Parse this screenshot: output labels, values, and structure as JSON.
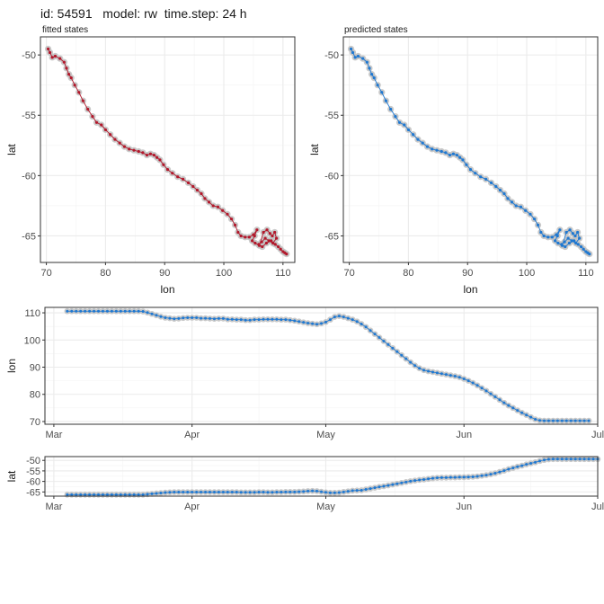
{
  "title": "id: 54591   model: rw  time.step: 24 h",
  "colors": {
    "fitted": "#b2182b",
    "predicted": "#1f78d1",
    "obs": "#bfbfbf",
    "grid": "#ebebeb",
    "panel_border": "#333333"
  },
  "chart_data": [
    {
      "type": "scatter",
      "subtitle": "fitted states",
      "xlabel": "lon",
      "ylabel": "lat",
      "xlim": [
        69,
        112
      ],
      "ylim": [
        -67.2,
        -48.5
      ],
      "xticks": [
        70,
        80,
        90,
        100,
        110
      ],
      "yticks": [
        -50,
        -55,
        -60,
        -65
      ],
      "series": [
        {
          "style": "fitted",
          "x": [
            70.3,
            70.6,
            71,
            71.5,
            72.3,
            73,
            73.4,
            73.8,
            74.2,
            74.8,
            75.5,
            76.2,
            77,
            77.8,
            78.5,
            79.3,
            80,
            80.8,
            81.6,
            82.4,
            83.2,
            84,
            84.8,
            85.6,
            86.3,
            87,
            87.6,
            88.2,
            88.7,
            89.2,
            89.8,
            90.5,
            91.3,
            92.2,
            93.1,
            94,
            94.8,
            95.5,
            96.2,
            96.8,
            97.5,
            98.2,
            99,
            99.8,
            100.6,
            101.3,
            101.9,
            102.4,
            102.9,
            103.6,
            104.3,
            105,
            105.6,
            105.2,
            104.8,
            105.3,
            106,
            106.7,
            107.3,
            107.8,
            108.2,
            108.6,
            108.9,
            108.3,
            107.6,
            107,
            106.4,
            105.9,
            106.5,
            107.2,
            108,
            108.7,
            109.2,
            109.6,
            110,
            110.3,
            110.6
          ],
          "y": [
            -49.5,
            -49.8,
            -50.2,
            -50.1,
            -50.3,
            -50.6,
            -51.1,
            -51.6,
            -51.9,
            -52.5,
            -53.1,
            -53.8,
            -54.5,
            -55.1,
            -55.6,
            -55.8,
            -56.2,
            -56.6,
            -57,
            -57.3,
            -57.6,
            -57.8,
            -57.9,
            -58,
            -58.1,
            -58.3,
            -58.2,
            -58.3,
            -58.5,
            -58.7,
            -59.1,
            -59.5,
            -59.8,
            -60.1,
            -60.3,
            -60.6,
            -60.9,
            -61.2,
            -61.5,
            -61.9,
            -62.2,
            -62.5,
            -62.6,
            -62.9,
            -63.2,
            -63.6,
            -64.1,
            -64.7,
            -65,
            -65.1,
            -65.1,
            -64.9,
            -64.5,
            -65,
            -65.4,
            -65.6,
            -65.8,
            -64.7,
            -64.5,
            -64.8,
            -65,
            -64.7,
            -65.2,
            -65.6,
            -65.4,
            -65.2,
            -65.5,
            -65.7,
            -65.9,
            -65.6,
            -65.4,
            -65.7,
            -65.9,
            -66.1,
            -66.3,
            -66.4,
            -66.5
          ]
        }
      ]
    },
    {
      "type": "scatter",
      "subtitle": "predicted states",
      "xlabel": "lon",
      "ylabel": "lat",
      "xlim": [
        69,
        112
      ],
      "ylim": [
        -67.2,
        -48.5
      ],
      "xticks": [
        70,
        80,
        90,
        100,
        110
      ],
      "yticks": [
        -50,
        -55,
        -60,
        -65
      ],
      "series": [
        {
          "style": "predicted",
          "x": [
            70.3,
            70.6,
            71,
            71.5,
            72.3,
            73,
            73.4,
            73.8,
            74.2,
            74.8,
            75.5,
            76.2,
            77,
            77.8,
            78.5,
            79.3,
            80,
            80.8,
            81.6,
            82.4,
            83.2,
            84,
            84.8,
            85.6,
            86.3,
            87,
            87.6,
            88.2,
            88.7,
            89.2,
            89.8,
            90.5,
            91.3,
            92.2,
            93.1,
            94,
            94.8,
            95.5,
            96.2,
            96.8,
            97.5,
            98.2,
            99,
            99.8,
            100.6,
            101.3,
            101.9,
            102.4,
            102.9,
            103.6,
            104.3,
            105,
            105.6,
            105.2,
            104.8,
            105.3,
            106,
            106.7,
            107.3,
            107.8,
            108.2,
            108.6,
            108.9,
            108.3,
            107.6,
            107,
            106.4,
            105.9,
            106.5,
            107.2,
            108,
            108.7,
            109.2,
            109.6,
            110,
            110.3,
            110.6
          ],
          "y": [
            -49.5,
            -49.8,
            -50.2,
            -50.1,
            -50.3,
            -50.6,
            -51.1,
            -51.6,
            -51.9,
            -52.5,
            -53.1,
            -53.8,
            -54.5,
            -55.1,
            -55.6,
            -55.8,
            -56.2,
            -56.6,
            -57,
            -57.3,
            -57.6,
            -57.8,
            -57.9,
            -58,
            -58.1,
            -58.3,
            -58.2,
            -58.3,
            -58.5,
            -58.7,
            -59.1,
            -59.5,
            -59.8,
            -60.1,
            -60.3,
            -60.6,
            -60.9,
            -61.2,
            -61.5,
            -61.9,
            -62.2,
            -62.5,
            -62.6,
            -62.9,
            -63.2,
            -63.6,
            -64.1,
            -64.7,
            -65,
            -65.1,
            -65.1,
            -64.9,
            -64.5,
            -65,
            -65.4,
            -65.6,
            -65.8,
            -64.7,
            -64.5,
            -64.8,
            -65,
            -64.7,
            -65.2,
            -65.6,
            -65.4,
            -65.2,
            -65.5,
            -65.7,
            -65.9,
            -65.6,
            -65.4,
            -65.7,
            -65.9,
            -66.1,
            -66.3,
            -66.4,
            -66.5
          ]
        }
      ]
    },
    {
      "type": "line",
      "xlabel": "",
      "ylabel": "lon",
      "xlim": [
        "2019-02-27",
        "2019-07-01"
      ],
      "ylim": [
        69,
        112
      ],
      "xticks": [
        [
          "2019-03-01",
          "Mar"
        ],
        [
          "2019-04-01",
          "Apr"
        ],
        [
          "2019-05-01",
          "May"
        ],
        [
          "2019-06-01",
          "Jun"
        ],
        [
          "2019-07-01",
          "Jul"
        ]
      ],
      "yticks": [
        70,
        80,
        90,
        100,
        110
      ],
      "start": "2019-03-04",
      "values": [
        110.6,
        110.6,
        110.6,
        110.6,
        110.6,
        110.6,
        110.6,
        110.6,
        110.6,
        110.6,
        110.6,
        110.6,
        110.6,
        110.6,
        110.6,
        110.6,
        110.6,
        110.5,
        110.1,
        109.6,
        109.1,
        108.6,
        108.2,
        108,
        107.8,
        107.9,
        108.1,
        108.2,
        108.2,
        108.2,
        108,
        108,
        107.9,
        107.8,
        107.9,
        107.9,
        107.6,
        107.6,
        107.5,
        107.5,
        107.3,
        107.3,
        107.5,
        107.5,
        107.6,
        107.6,
        107.6,
        107.6,
        107.5,
        107.5,
        107.3,
        107.1,
        106.8,
        106.5,
        106.2,
        106,
        105.8,
        106.1,
        106.6,
        107.5,
        108.5,
        108.8,
        108.5,
        108,
        107.5,
        106.8,
        105.9,
        104.8,
        103.5,
        102.2,
        100.9,
        99.6,
        98.3,
        97,
        95.7,
        94.4,
        93.1,
        91.8,
        90.6,
        89.6,
        88.9,
        88.5,
        88.2,
        87.9,
        87.6,
        87.3,
        87,
        86.7,
        86.3,
        85.7,
        85,
        84.2,
        83.3,
        82.3,
        81.3,
        80.2,
        79.1,
        78,
        76.9,
        75.9,
        75,
        74.1,
        73.2,
        72.4,
        71.6,
        70.8,
        70.4,
        70.3,
        70.3,
        70.3,
        70.3,
        70.3,
        70.3,
        70.3,
        70.3,
        70.3,
        70.3,
        70.3
      ]
    },
    {
      "type": "line",
      "xlabel": "",
      "ylabel": "lat",
      "xlim": [
        "2019-02-27",
        "2019-07-01"
      ],
      "ylim": [
        -67,
        -48.2
      ],
      "xticks": [
        [
          "2019-03-01",
          "Mar"
        ],
        [
          "2019-04-01",
          "Apr"
        ],
        [
          "2019-05-01",
          "May"
        ],
        [
          "2019-06-01",
          "Jun"
        ],
        [
          "2019-07-01",
          "Jul"
        ]
      ],
      "yticks": [
        -50,
        -55,
        -60,
        -65
      ],
      "start": "2019-03-04",
      "values": [
        -66.3,
        -66.3,
        -66.3,
        -66.3,
        -66.3,
        -66.3,
        -66.3,
        -66.3,
        -66.3,
        -66.3,
        -66.3,
        -66.3,
        -66.3,
        -66.3,
        -66.3,
        -66.3,
        -66.3,
        -66.3,
        -66.1,
        -65.9,
        -65.7,
        -65.5,
        -65.3,
        -65.2,
        -65.1,
        -65.1,
        -65.1,
        -65.1,
        -65.1,
        -65.1,
        -65.1,
        -65.1,
        -65.1,
        -65.1,
        -65.1,
        -65.1,
        -65.1,
        -65.1,
        -65.1,
        -65.2,
        -65.2,
        -65.2,
        -65.2,
        -65.1,
        -65.1,
        -65.2,
        -65.2,
        -65.1,
        -65.1,
        -65,
        -65,
        -65,
        -64.9,
        -64.8,
        -64.6,
        -64.5,
        -64.6,
        -64.9,
        -65.2,
        -65.4,
        -65.4,
        -65.3,
        -65,
        -64.7,
        -64.4,
        -64.3,
        -64.2,
        -63.8,
        -63.4,
        -63,
        -62.6,
        -62.3,
        -61.9,
        -61.5,
        -61.1,
        -60.7,
        -60.3,
        -59.9,
        -59.6,
        -59.3,
        -59.1,
        -58.8,
        -58.5,
        -58.3,
        -58.2,
        -58.2,
        -58.1,
        -58.1,
        -58,
        -58,
        -57.9,
        -57.8,
        -57.6,
        -57.3,
        -57,
        -56.6,
        -56.1,
        -55.5,
        -54.9,
        -54.2,
        -53.6,
        -53,
        -52.5,
        -51.9,
        -51.4,
        -50.9,
        -50.3,
        -49.8,
        -49.5,
        -49.4,
        -49.4,
        -49.4,
        -49.4,
        -49.4,
        -49.4,
        -49.4,
        -49.4,
        -49.4,
        -49.4,
        -49.4
      ]
    }
  ]
}
